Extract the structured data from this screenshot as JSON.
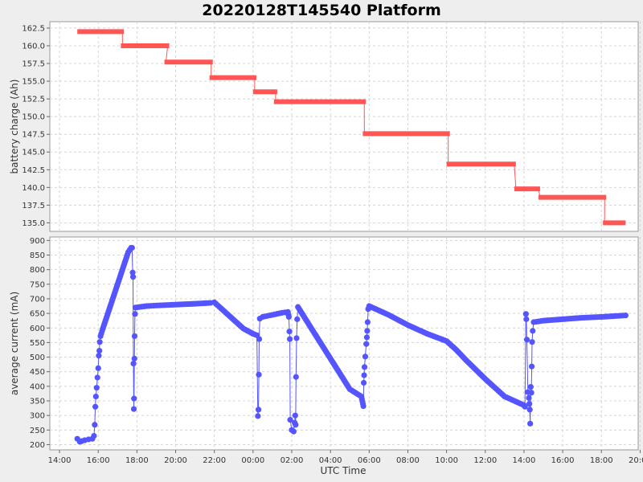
{
  "chart_data": {
    "title": "20220128T145540 Platform",
    "xlabel": "UTC Time",
    "x_ticks": [
      "14:00",
      "16:00",
      "18:00",
      "20:00",
      "22:00",
      "00:00",
      "02:00",
      "04:00",
      "06:00",
      "08:00",
      "10:00",
      "12:00",
      "14:00",
      "16:00",
      "18:00",
      "20:00"
    ],
    "x_range_hours": [
      13.5,
      43.9
    ],
    "colors": {
      "charge": "#ff5555",
      "current": "#5555ff",
      "grid": "#d4d4d4"
    },
    "panels": [
      {
        "type": "step",
        "ylabel": "battery charge (Ah)",
        "ylim": [
          133.8,
          163.4
        ],
        "y_ticks": [
          135.0,
          137.5,
          140.0,
          142.5,
          145.0,
          147.5,
          150.0,
          152.5,
          155.0,
          157.5,
          160.0,
          162.5
        ],
        "segments": [
          {
            "x0": 14.92,
            "x1": 17.33,
            "y": 162.0
          },
          {
            "x0": 17.17,
            "x1": 19.67,
            "y": 160.0
          },
          {
            "x0": 19.42,
            "x1": 21.92,
            "y": 157.7
          },
          {
            "x0": 21.75,
            "x1": 24.17,
            "y": 155.5
          },
          {
            "x0": 24.0,
            "x1": 25.25,
            "y": 153.5
          },
          {
            "x0": 25.08,
            "x1": 29.83,
            "y": 152.1
          },
          {
            "x0": 29.67,
            "x1": 34.17,
            "y": 147.6
          },
          {
            "x0": 34.0,
            "x1": 37.58,
            "y": 143.3
          },
          {
            "x0": 37.5,
            "x1": 38.83,
            "y": 139.8
          },
          {
            "x0": 38.75,
            "x1": 42.25,
            "y": 138.6
          },
          {
            "x0": 42.08,
            "x1": 43.25,
            "y": 135.0
          }
        ]
      },
      {
        "type": "scatter-line",
        "ylabel": "average current (mA)",
        "ylim": [
          182,
          912
        ],
        "y_ticks": [
          200,
          250,
          300,
          350,
          400,
          450,
          500,
          550,
          600,
          650,
          700,
          750,
          800,
          850,
          900
        ],
        "points": [
          [
            14.92,
            220
          ],
          [
            15.05,
            210
          ],
          [
            15.15,
            212
          ],
          [
            15.3,
            215
          ],
          [
            15.5,
            218
          ],
          [
            15.7,
            220
          ],
          [
            15.78,
            230
          ],
          [
            15.82,
            268
          ],
          [
            15.85,
            330
          ],
          [
            15.88,
            365
          ],
          [
            15.92,
            395
          ],
          [
            15.96,
            430
          ],
          [
            16.0,
            462
          ],
          [
            16.03,
            505
          ],
          [
            16.06,
            522
          ],
          [
            16.08,
            552
          ],
          [
            16.12,
            572
          ],
          [
            16.2,
            590
          ],
          [
            16.4,
            630
          ],
          [
            16.6,
            670
          ],
          [
            16.8,
            710
          ],
          [
            17.0,
            750
          ],
          [
            17.2,
            790
          ],
          [
            17.4,
            830
          ],
          [
            17.55,
            860
          ],
          [
            17.7,
            875
          ],
          [
            17.75,
            875
          ],
          [
            17.78,
            790
          ],
          [
            17.8,
            775
          ],
          [
            17.82,
            478
          ],
          [
            17.84,
            322
          ],
          [
            17.85,
            358
          ],
          [
            17.87,
            495
          ],
          [
            17.88,
            572
          ],
          [
            17.9,
            648
          ],
          [
            17.92,
            670
          ],
          [
            18.5,
            675
          ],
          [
            19.0,
            677
          ],
          [
            20.0,
            680
          ],
          [
            21.0,
            683
          ],
          [
            21.8,
            686
          ],
          [
            22.0,
            688
          ],
          [
            23.0,
            628
          ],
          [
            23.5,
            598
          ],
          [
            24.0,
            580
          ],
          [
            24.2,
            575
          ],
          [
            24.25,
            298
          ],
          [
            24.28,
            320
          ],
          [
            24.3,
            440
          ],
          [
            24.32,
            562
          ],
          [
            24.35,
            632
          ],
          [
            24.5,
            638
          ],
          [
            25.0,
            645
          ],
          [
            25.5,
            652
          ],
          [
            25.8,
            655
          ],
          [
            25.85,
            638
          ],
          [
            25.88,
            588
          ],
          [
            25.9,
            562
          ],
          [
            25.92,
            285
          ],
          [
            26.0,
            250
          ],
          [
            26.1,
            245
          ],
          [
            26.15,
            275
          ],
          [
            26.18,
            300
          ],
          [
            26.2,
            268
          ],
          [
            26.22,
            432
          ],
          [
            26.25,
            565
          ],
          [
            26.28,
            630
          ],
          [
            26.32,
            672
          ],
          [
            27.0,
            600
          ],
          [
            28.0,
            495
          ],
          [
            29.0,
            390
          ],
          [
            29.6,
            365
          ],
          [
            29.7,
            332
          ],
          [
            29.72,
            412
          ],
          [
            29.74,
            438
          ],
          [
            29.76,
            466
          ],
          [
            29.8,
            502
          ],
          [
            29.85,
            545
          ],
          [
            29.88,
            568
          ],
          [
            29.9,
            590
          ],
          [
            29.92,
            620
          ],
          [
            29.95,
            665
          ],
          [
            30.0,
            675
          ],
          [
            31.0,
            645
          ],
          [
            32.0,
            610
          ],
          [
            33.0,
            580
          ],
          [
            34.0,
            555
          ],
          [
            34.5,
            525
          ],
          [
            35.0,
            490
          ],
          [
            36.0,
            425
          ],
          [
            37.0,
            365
          ],
          [
            38.0,
            335
          ],
          [
            38.05,
            330
          ],
          [
            38.1,
            648
          ],
          [
            38.12,
            630
          ],
          [
            38.15,
            560
          ],
          [
            38.2,
            380
          ],
          [
            38.25,
            360
          ],
          [
            38.28,
            340
          ],
          [
            38.3,
            320
          ],
          [
            38.32,
            272
          ],
          [
            38.35,
            398
          ],
          [
            38.38,
            378
          ],
          [
            38.4,
            468
          ],
          [
            38.42,
            552
          ],
          [
            38.45,
            590
          ],
          [
            38.5,
            620
          ],
          [
            39.0,
            625
          ],
          [
            40.0,
            630
          ],
          [
            41.0,
            635
          ],
          [
            42.0,
            638
          ],
          [
            43.0,
            642
          ],
          [
            43.25,
            643
          ]
        ]
      }
    ]
  }
}
